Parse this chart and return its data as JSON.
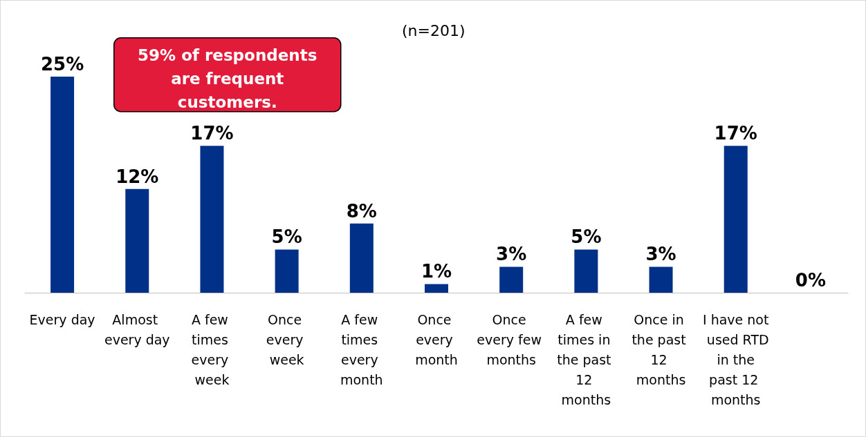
{
  "chart_data": {
    "type": "bar",
    "categories": [
      "Every day",
      "Almost every day",
      "A few times every week",
      "Once every week",
      "A few times every month",
      "Once every month",
      "Once every few months",
      "A few times in the past 12 months",
      "Once in the past 12 months",
      "I have not used RTD in the past 12 months",
      null
    ],
    "values": [
      25,
      12,
      17,
      5,
      8,
      1,
      3,
      5,
      3,
      17,
      0
    ],
    "value_labels": [
      "25%",
      "12%",
      "17%",
      "5%",
      "8%",
      "1%",
      "3%",
      "5%",
      "3%",
      "17%",
      "0%"
    ],
    "color": "#003087",
    "annotations": [
      "(n=201)",
      "59% of respondents are frequent customers."
    ]
  }
}
